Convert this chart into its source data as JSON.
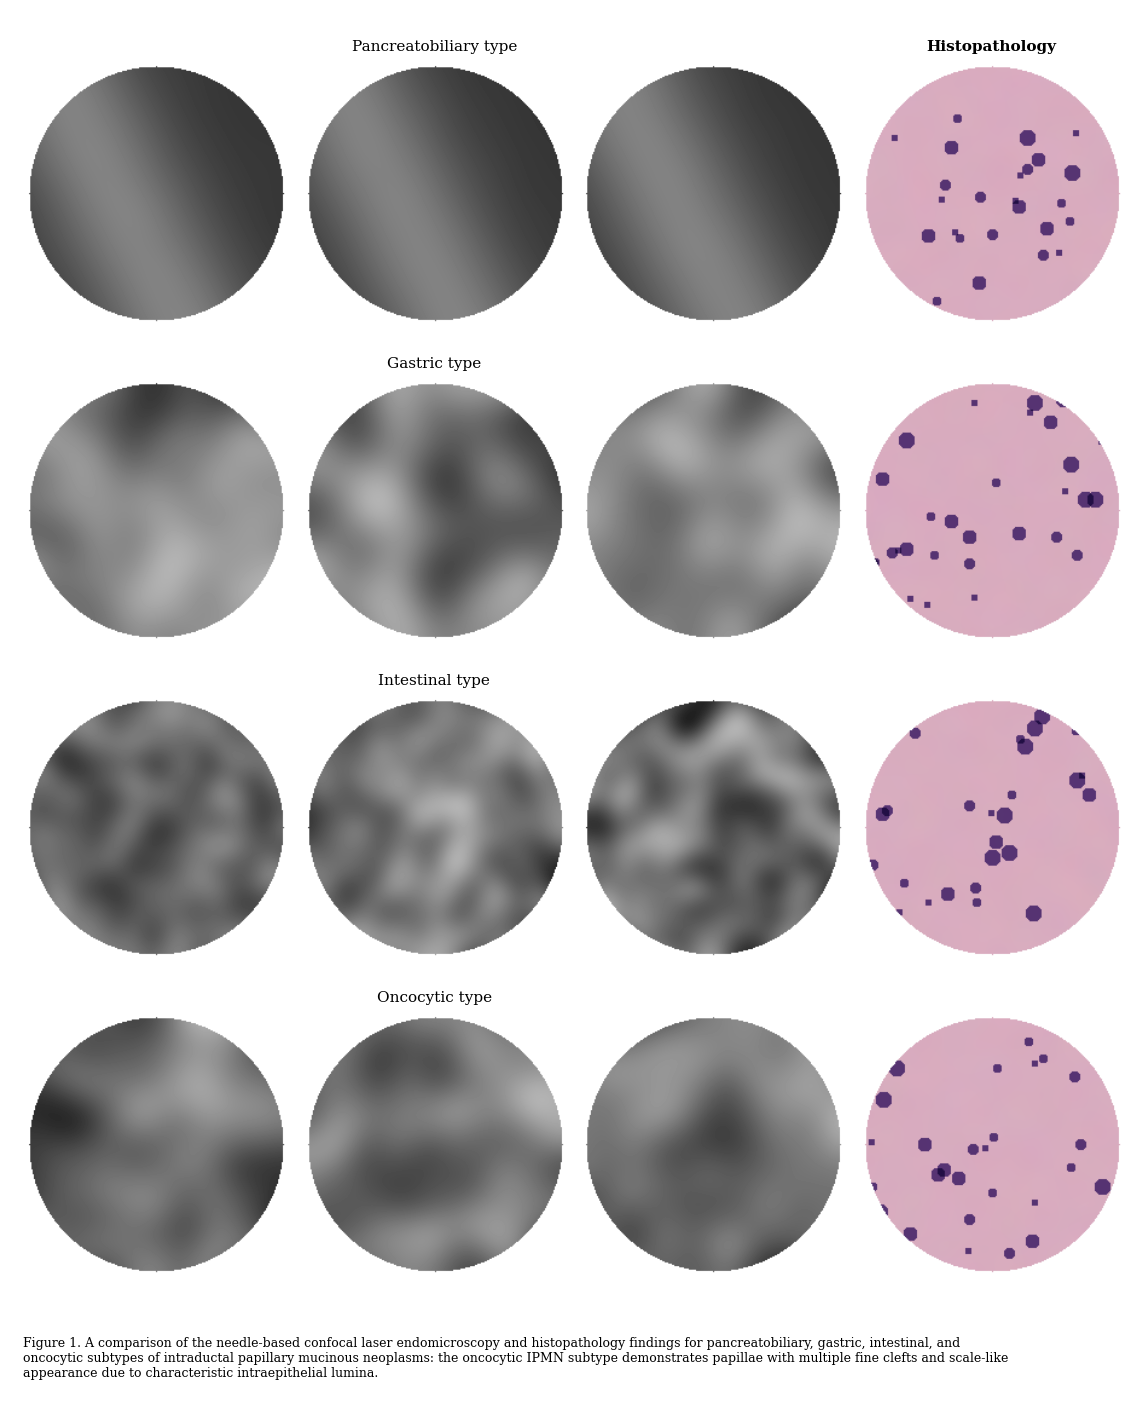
{
  "title": "Figure 1",
  "caption": "Figure 1. A comparison of the needle-based confocal laser endomicroscopy and histopathology findings for pancreatobiliary, gastric, intestinal, and\noncocytic subtypes of intraductal papillary mucinous neoplasms: the oncocytic IPMN subtype demonstrates papillae with multiple fine clefts and scale-like\nappearance due to characteristic intraepithelial lumina.",
  "row_labels": [
    "Pancreatobiliary type",
    "Gastric type",
    "Intestinal type",
    "Oncocytic type"
  ],
  "col_labels": [
    "",
    "",
    "",
    "Histopathology"
  ],
  "background_color": "#ffffff",
  "label_fontsize": 11,
  "caption_fontsize": 9,
  "rows": 4,
  "cols": 4,
  "nCLE_cols": 3,
  "histo_col": 3
}
